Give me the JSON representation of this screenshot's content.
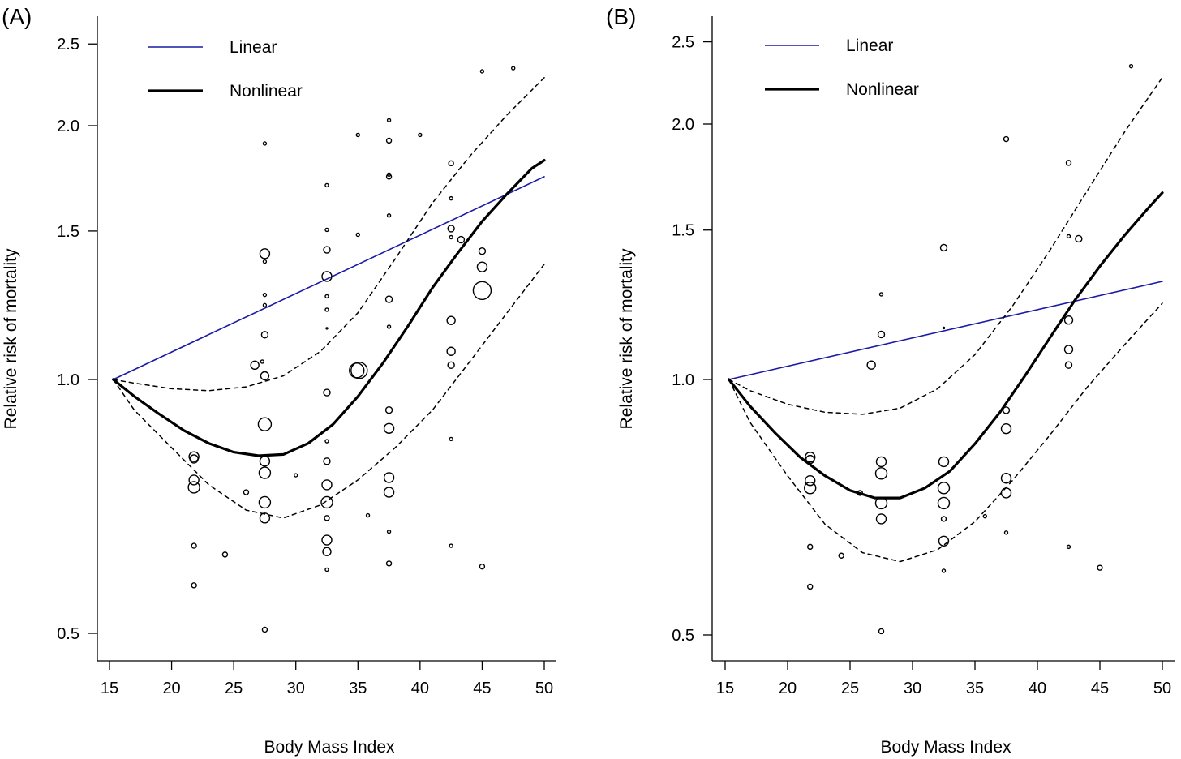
{
  "chart_data": [
    {
      "type": "scatter",
      "panel_label": "(A)",
      "xlabel": "Body Mass Index",
      "ylabel": "Relative risk of mortality",
      "xlim": [
        13,
        51
      ],
      "ylim": [
        0.465,
        2.6
      ],
      "y_scale": "log",
      "x_ticks": [
        15,
        20,
        25,
        30,
        35,
        40,
        45,
        50
      ],
      "x_tick_labels": [
        "15",
        "20",
        "25",
        "30",
        "35",
        "40",
        "45",
        "50"
      ],
      "y_ticks": [
        0.5,
        1.0,
        1.5,
        2.0,
        2.5
      ],
      "y_tick_labels": [
        "0.5",
        "1.0",
        "1.5",
        "2.0",
        "2.5"
      ],
      "grid": false,
      "legend": {
        "placement": "top-left",
        "entries": [
          {
            "label": "Linear",
            "color": "#1a1aa6",
            "style": "thin"
          },
          {
            "label": "Nonlinear",
            "color": "#000000",
            "style": "thick"
          }
        ]
      },
      "series": [
        {
          "name": "Linear",
          "kind": "line",
          "color": "#1a1aa6",
          "x": [
            15.3,
            50
          ],
          "y": [
            1.0,
            1.74
          ]
        },
        {
          "name": "Nonlinear",
          "kind": "line",
          "color": "#000000",
          "x": [
            15.3,
            17,
            19,
            21,
            23,
            25,
            27,
            29,
            31,
            33,
            35,
            37,
            39,
            41,
            43,
            45,
            47,
            49,
            50
          ],
          "y": [
            1.0,
            0.955,
            0.91,
            0.87,
            0.84,
            0.82,
            0.812,
            0.815,
            0.84,
            0.885,
            0.955,
            1.045,
            1.155,
            1.285,
            1.41,
            1.54,
            1.66,
            1.78,
            1.82
          ]
        },
        {
          "name": "",
          "kind": "dashed-upper",
          "color": "#000000",
          "x": [
            15.3,
            17,
            20,
            23,
            26,
            29,
            32,
            35,
            38,
            41,
            44,
            47,
            50
          ],
          "y": [
            1.0,
            0.99,
            0.975,
            0.97,
            0.98,
            1.01,
            1.08,
            1.2,
            1.39,
            1.62,
            1.84,
            2.06,
            2.28
          ]
        },
        {
          "name": "",
          "kind": "dashed-lower",
          "color": "#000000",
          "x": [
            15.3,
            17,
            20,
            23,
            26,
            29,
            32,
            35,
            38,
            41,
            44,
            47,
            50
          ],
          "y": [
            1.0,
            0.92,
            0.83,
            0.75,
            0.7,
            0.685,
            0.71,
            0.76,
            0.83,
            0.92,
            1.05,
            1.2,
            1.37
          ]
        },
        {
          "name": "",
          "kind": "points",
          "points": [
            [
              21.8,
              0.81,
              6
            ],
            [
              21.8,
              0.805,
              5
            ],
            [
              21.8,
              0.76,
              6
            ],
            [
              21.8,
              0.745,
              7
            ],
            [
              21.8,
              0.635,
              3
            ],
            [
              21.8,
              0.57,
              3
            ],
            [
              24.3,
              0.62,
              3
            ],
            [
              26,
              0.735,
              3
            ],
            [
              26.7,
              1.04,
              5
            ],
            [
              27.3,
              1.05,
              2
            ],
            [
              27.5,
              1.01,
              5
            ],
            [
              27.5,
              0.885,
              8
            ],
            [
              27.5,
              1.905,
              2
            ],
            [
              27.5,
              1.41,
              6
            ],
            [
              27.5,
              1.38,
              2
            ],
            [
              27.5,
              1.26,
              2
            ],
            [
              27.5,
              1.225,
              2
            ],
            [
              27.5,
              1.13,
              4
            ],
            [
              27.5,
              0.8,
              6
            ],
            [
              27.5,
              0.775,
              7
            ],
            [
              27.5,
              0.715,
              7
            ],
            [
              27.5,
              0.685,
              6
            ],
            [
              27.5,
              0.505,
              3
            ],
            [
              30,
              0.77,
              2
            ],
            [
              32.5,
              1.7,
              2
            ],
            [
              32.5,
              1.505,
              2
            ],
            [
              32.5,
              1.425,
              4
            ],
            [
              32.5,
              1.325,
              6
            ],
            [
              32.5,
              1.255,
              2
            ],
            [
              32.5,
              1.21,
              2
            ],
            [
              32.5,
              1.15,
              1
            ],
            [
              32.5,
              0.965,
              4
            ],
            [
              32.5,
              0.845,
              2
            ],
            [
              32.5,
              0.8,
              4
            ],
            [
              32.5,
              0.75,
              6
            ],
            [
              32.5,
              0.715,
              7
            ],
            [
              32.5,
              0.685,
              3
            ],
            [
              32.5,
              0.645,
              6
            ],
            [
              32.5,
              0.625,
              5
            ],
            [
              32.5,
              0.595,
              2
            ],
            [
              35,
              1.95,
              2
            ],
            [
              35,
              1.485,
              2
            ],
            [
              34.9,
              1.025,
              9
            ],
            [
              35.1,
              1.025,
              10
            ],
            [
              35.8,
              0.69,
              2
            ],
            [
              37.5,
              2.03,
              2
            ],
            [
              37.5,
              1.92,
              3
            ],
            [
              37.5,
              1.75,
              2
            ],
            [
              37.5,
              1.74,
              3
            ],
            [
              37.5,
              1.565,
              2
            ],
            [
              37.5,
              1.245,
              4
            ],
            [
              37.5,
              1.155,
              2
            ],
            [
              37.5,
              0.92,
              4
            ],
            [
              37.5,
              0.875,
              6
            ],
            [
              37.5,
              0.765,
              6
            ],
            [
              37.5,
              0.735,
              6
            ],
            [
              37.5,
              0.66,
              2
            ],
            [
              37.5,
              0.605,
              3
            ],
            [
              40,
              1.95,
              2
            ],
            [
              42.5,
              1.805,
              3
            ],
            [
              42.5,
              1.64,
              2
            ],
            [
              42.5,
              1.51,
              4
            ],
            [
              42.5,
              1.475,
              2
            ],
            [
              42.5,
              1.175,
              5
            ],
            [
              42.5,
              1.08,
              5
            ],
            [
              42.5,
              1.04,
              4
            ],
            [
              42.5,
              0.85,
              2
            ],
            [
              42.5,
              0.635,
              2
            ],
            [
              43.3,
              1.465,
              4
            ],
            [
              45,
              2.32,
              2
            ],
            [
              45,
              1.42,
              4
            ],
            [
              45,
              1.36,
              6
            ],
            [
              45,
              1.275,
              11
            ],
            [
              45,
              0.6,
              3
            ],
            [
              47.5,
              2.34,
              2
            ]
          ]
        }
      ]
    },
    {
      "type": "scatter",
      "panel_label": "(B)",
      "xlabel": "Body Mass Index",
      "ylabel": "Relative risk of mortality",
      "xlim": [
        13,
        51
      ],
      "ylim": [
        0.465,
        2.6
      ],
      "y_scale": "log",
      "x_ticks": [
        15,
        20,
        25,
        30,
        35,
        40,
        45,
        50
      ],
      "x_tick_labels": [
        "15",
        "20",
        "25",
        "30",
        "35",
        "40",
        "45",
        "50"
      ],
      "y_ticks": [
        0.5,
        1.0,
        1.5,
        2.0,
        2.5
      ],
      "y_tick_labels": [
        "0.5",
        "1.0",
        "1.5",
        "2.0",
        "2.5"
      ],
      "grid": false,
      "legend": {
        "placement": "top-left",
        "entries": [
          {
            "label": "Linear",
            "color": "#1a1aa6",
            "style": "thin"
          },
          {
            "label": "Nonlinear",
            "color": "#000000",
            "style": "thick"
          }
        ]
      },
      "series": [
        {
          "name": "Linear",
          "kind": "line",
          "color": "#1a1aa6",
          "x": [
            15.3,
            50
          ],
          "y": [
            1.0,
            1.305
          ]
        },
        {
          "name": "Nonlinear",
          "kind": "line",
          "color": "#000000",
          "x": [
            15.3,
            17,
            19,
            21,
            23,
            25,
            27,
            29,
            31,
            33,
            35,
            37,
            39,
            41,
            43,
            45,
            47,
            49,
            50
          ],
          "y": [
            1.0,
            0.93,
            0.865,
            0.81,
            0.77,
            0.74,
            0.725,
            0.725,
            0.745,
            0.78,
            0.84,
            0.915,
            1.01,
            1.12,
            1.24,
            1.36,
            1.48,
            1.6,
            1.66
          ]
        },
        {
          "name": "",
          "kind": "dashed-upper",
          "color": "#000000",
          "x": [
            15.3,
            17,
            20,
            23,
            26,
            29,
            32,
            35,
            38,
            41,
            44,
            47,
            50
          ],
          "y": [
            1.0,
            0.97,
            0.935,
            0.915,
            0.91,
            0.925,
            0.975,
            1.07,
            1.22,
            1.42,
            1.67,
            1.96,
            2.27
          ]
        },
        {
          "name": "",
          "kind": "dashed-lower",
          "color": "#000000",
          "x": [
            15.3,
            17,
            20,
            23,
            26,
            29,
            32,
            35,
            38,
            41,
            44,
            47,
            50
          ],
          "y": [
            1.0,
            0.89,
            0.77,
            0.675,
            0.625,
            0.61,
            0.63,
            0.68,
            0.76,
            0.86,
            0.98,
            1.1,
            1.23
          ]
        },
        {
          "name": "",
          "kind": "points",
          "points": [
            [
              21.8,
              0.81,
              6
            ],
            [
              21.8,
              0.805,
              5
            ],
            [
              21.8,
              0.76,
              6
            ],
            [
              21.8,
              0.745,
              7
            ],
            [
              21.8,
              0.635,
              3
            ],
            [
              21.8,
              0.57,
              3
            ],
            [
              24.3,
              0.62,
              3
            ],
            [
              25.8,
              0.735,
              3
            ],
            [
              26.7,
              1.04,
              5
            ],
            [
              27.5,
              1.26,
              2
            ],
            [
              27.5,
              1.13,
              4
            ],
            [
              27.5,
              0.8,
              6
            ],
            [
              27.5,
              0.775,
              7
            ],
            [
              27.5,
              0.715,
              7
            ],
            [
              27.5,
              0.685,
              6
            ],
            [
              27.5,
              0.505,
              3
            ],
            [
              32.5,
              1.43,
              4
            ],
            [
              32.5,
              1.15,
              1
            ],
            [
              32.5,
              0.8,
              6
            ],
            [
              32.5,
              0.745,
              7
            ],
            [
              32.5,
              0.715,
              7
            ],
            [
              32.5,
              0.685,
              3
            ],
            [
              32.5,
              0.645,
              6
            ],
            [
              32.5,
              0.595,
              2
            ],
            [
              35.8,
              0.69,
              2
            ],
            [
              37.5,
              1.92,
              3
            ],
            [
              37.5,
              0.92,
              4
            ],
            [
              37.5,
              0.875,
              6
            ],
            [
              37.5,
              0.765,
              6
            ],
            [
              37.5,
              0.735,
              6
            ],
            [
              37.5,
              0.66,
              2
            ],
            [
              42.5,
              1.8,
              3
            ],
            [
              42.5,
              1.475,
              2
            ],
            [
              42.5,
              1.175,
              5
            ],
            [
              42.5,
              1.085,
              5
            ],
            [
              42.5,
              1.04,
              4
            ],
            [
              42.5,
              0.635,
              2
            ],
            [
              43.3,
              1.465,
              4
            ],
            [
              45,
              0.6,
              3
            ],
            [
              47.5,
              2.34,
              2
            ]
          ]
        }
      ]
    }
  ]
}
